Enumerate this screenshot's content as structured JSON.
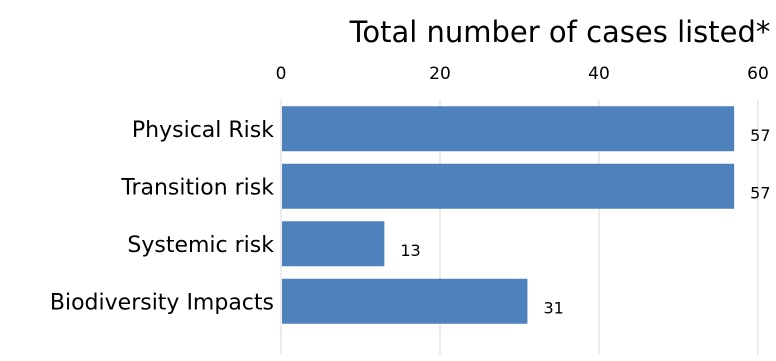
{
  "chart_data": {
    "type": "bar",
    "orientation": "horizontal",
    "title": "Total number of cases listed*",
    "xlabel": "",
    "ylabel": "",
    "categories": [
      "Physical Risk",
      "Transition risk",
      "Systemic risk",
      "Biodiversity Impacts"
    ],
    "values": [
      57,
      57,
      13,
      31
    ],
    "xlim": [
      0,
      60
    ],
    "x_ticks": [
      "0",
      "20",
      "40",
      "60"
    ],
    "x_axis_position": "top",
    "grid": true,
    "legend": false,
    "bar_color": "#4f81bd",
    "gridline_color": "#d9d9d9"
  }
}
